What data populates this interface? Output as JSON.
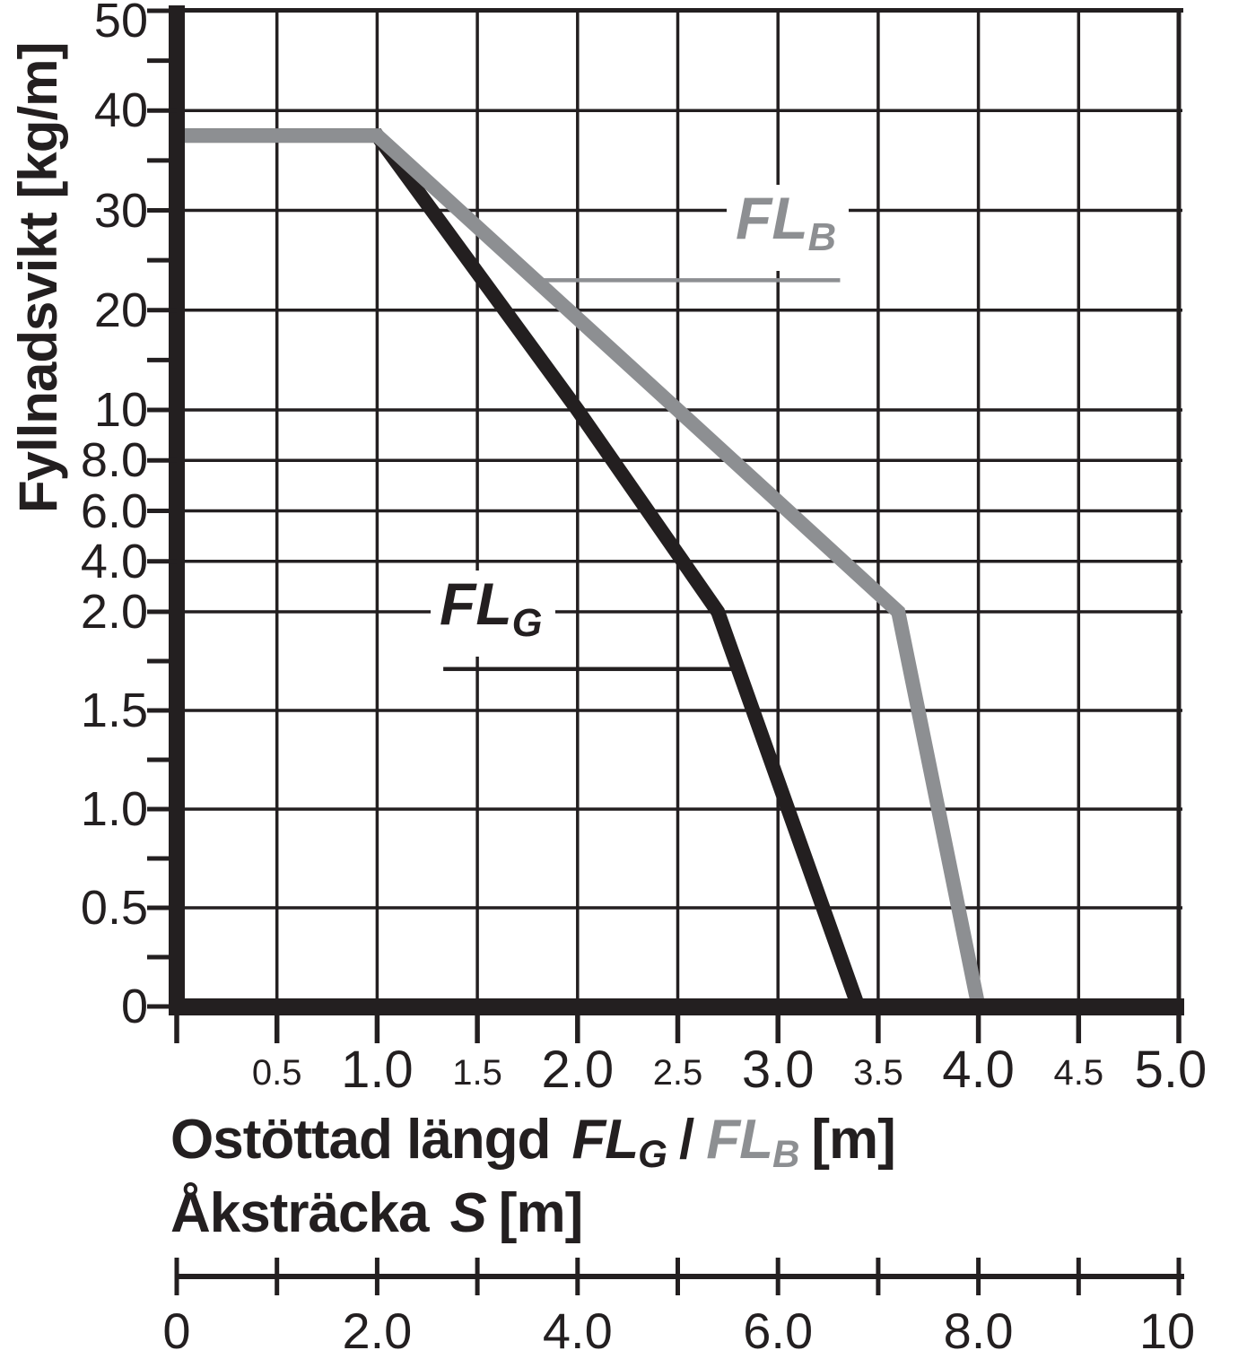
{
  "chart_data": {
    "type": "line",
    "y_title": "Fyllnadsvikt [kg/m]",
    "x_title": {
      "prefix": "Ostöttad längd",
      "series1_text": "FL",
      "series1_sub": "G",
      "separator": "/",
      "series2_text": "FL",
      "series2_sub": "B",
      "unit": "[m]"
    },
    "s_title": {
      "prefix": "Åksträcka",
      "symbol": "S",
      "unit": "[m]"
    },
    "colors": {
      "black": "#231f20",
      "gray": "#8d8f92"
    },
    "x_axis": {
      "min": 0,
      "max": 5,
      "grid_step": 0.5,
      "major_labels": [
        {
          "value": 1.0,
          "text": "1.0"
        },
        {
          "value": 2.0,
          "text": "2.0"
        },
        {
          "value": 3.0,
          "text": "3.0"
        },
        {
          "value": 4.0,
          "text": "4.0"
        },
        {
          "value": 5.0,
          "text": "5.0"
        }
      ],
      "minor_labels": [
        {
          "value": 0.5,
          "text": "0.5"
        },
        {
          "value": 1.5,
          "text": "1.5"
        },
        {
          "value": 2.5,
          "text": "2.5"
        },
        {
          "value": 3.5,
          "text": "3.5"
        },
        {
          "value": 4.5,
          "text": "4.5"
        }
      ]
    },
    "y_axis": {
      "unit": "kg/m",
      "segment_breaks": [
        0,
        2,
        10,
        50
      ],
      "major_ticks": [
        {
          "value": 50,
          "text": "50"
        },
        {
          "value": 40,
          "text": "40"
        },
        {
          "value": 30,
          "text": "30"
        },
        {
          "value": 20,
          "text": "20"
        },
        {
          "value": 10,
          "text": "10"
        },
        {
          "value": 8,
          "text": "8.0"
        },
        {
          "value": 6,
          "text": "6.0"
        },
        {
          "value": 4,
          "text": "4.0"
        },
        {
          "value": 2,
          "text": "2.0"
        },
        {
          "value": 1.5,
          "text": "1.5"
        },
        {
          "value": 1,
          "text": "1.0"
        },
        {
          "value": 0.5,
          "text": "0.5"
        },
        {
          "value": 0,
          "text": "0"
        }
      ],
      "minor_ticks": [
        45,
        35,
        25,
        15,
        1.75,
        1.25,
        0.75,
        0.25
      ]
    },
    "s_axis": {
      "min": 0,
      "max": 10,
      "tick_step": 1,
      "labels": [
        {
          "value": 0,
          "text": "0"
        },
        {
          "value": 2,
          "text": "2.0"
        },
        {
          "value": 4,
          "text": "4.0"
        },
        {
          "value": 6,
          "text": "6.0"
        },
        {
          "value": 8,
          "text": "8.0"
        },
        {
          "value": 10,
          "text": "10"
        }
      ]
    },
    "series": [
      {
        "name": "FL_G",
        "label_text": "FL",
        "label_sub": "G",
        "color": "#231f20",
        "points": [
          [
            0,
            37.5
          ],
          [
            1.0,
            37.5
          ],
          [
            2.0,
            10
          ],
          [
            2.7,
            2.0
          ],
          [
            3.4,
            0
          ]
        ],
        "leader": {
          "y": 1.71,
          "x1": 1.33,
          "x2": 2.77
        }
      },
      {
        "name": "FL_B",
        "label_text": "FL",
        "label_sub": "B",
        "color": "#8d8f92",
        "points": [
          [
            0,
            37.5
          ],
          [
            1.0,
            37.5
          ],
          [
            2.5,
            10
          ],
          [
            3.6,
            2.0
          ],
          [
            4.0,
            0
          ]
        ],
        "leader": {
          "y": 23,
          "x1": 1.83,
          "x2": 3.31
        }
      }
    ]
  }
}
